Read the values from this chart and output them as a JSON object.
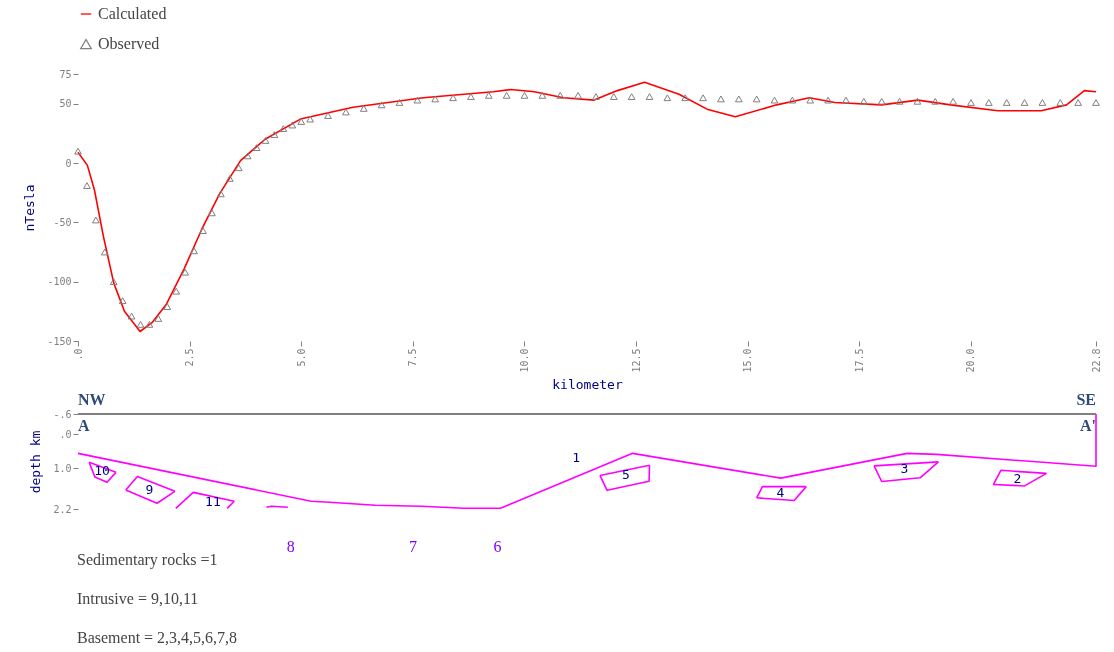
{
  "chart_data": [
    {
      "type": "line",
      "xlabel": "kilometer",
      "ylabel": "nTesla",
      "xlim": [
        0,
        22.8
      ],
      "ylim": [
        -150,
        75
      ],
      "xticks": [
        {
          "value": 0,
          "label": ".0"
        },
        2.5,
        {
          "value": 5,
          "label": "5.0"
        },
        7.5,
        {
          "value": 10,
          "label": "10.0"
        },
        12.5,
        {
          "value": 15,
          "label": "15.0"
        },
        17.5,
        {
          "value": 20,
          "label": "20.0"
        },
        22.8
      ],
      "yticks": [
        -150,
        -100,
        -50,
        0,
        50,
        75
      ],
      "legend": "top left",
      "series": [
        {
          "name": "Calculated",
          "color": "#ff0000",
          "x": [
            0,
            0.21,
            0.37,
            0.57,
            0.8,
            1.04,
            1.39,
            1.67,
            1.98,
            2.38,
            2.77,
            3.17,
            3.64,
            4.19,
            4.98,
            6.16,
            7.73,
            9.3,
            9.7,
            10.22,
            10.87,
            11.56,
            12.08,
            12.69,
            13.46,
            14.11,
            14.72,
            15.65,
            16.38,
            16.95,
            18.0,
            18.81,
            19.54,
            20.6,
            21.57,
            22.14,
            22.54,
            22.8
          ],
          "values": [
            9,
            -2,
            -23,
            -62,
            -101,
            -125,
            -142,
            -134,
            -119,
            -89,
            -56,
            -26,
            2,
            20,
            37,
            47,
            55,
            60,
            62,
            60,
            55,
            53,
            61,
            68,
            58,
            45,
            39,
            49,
            55,
            51,
            49,
            53,
            49,
            44,
            44,
            49,
            61,
            60
          ]
        },
        {
          "name": "Observed",
          "type": "scatter",
          "color": "#808080",
          "marker": "triangle",
          "x": [
            0,
            0.2,
            0.4,
            0.6,
            0.8,
            1.0,
            1.2,
            1.4,
            1.6,
            1.8,
            2.0,
            2.2,
            2.4,
            2.6,
            2.8,
            3.0,
            3.2,
            3.4,
            3.6,
            3.8,
            4.0,
            4.2,
            4.4,
            4.6,
            4.8,
            5.0,
            5.2,
            5.6,
            6.0,
            6.4,
            6.8,
            7.2,
            7.6,
            8.0,
            8.4,
            8.8,
            9.2,
            9.6,
            10.0,
            10.4,
            10.8,
            11.2,
            11.6,
            12.0,
            12.4,
            12.8,
            13.2,
            13.6,
            14.0,
            14.4,
            14.8,
            15.2,
            15.6,
            16.0,
            16.4,
            16.8,
            17.2,
            17.6,
            18.0,
            18.4,
            18.8,
            19.2,
            19.6,
            20.0,
            20.4,
            20.8,
            21.2,
            21.6,
            22.0,
            22.4,
            22.8
          ],
          "values": [
            10,
            -19,
            -48,
            -75,
            -100,
            -116,
            -129,
            -136,
            -136,
            -131,
            -121,
            -108,
            -92,
            -74,
            -57,
            -42,
            -26,
            -13,
            -4,
            6,
            13,
            19,
            24,
            29,
            32,
            35,
            37,
            40,
            43,
            46,
            49,
            51,
            53,
            54,
            55,
            56,
            57,
            57,
            57,
            57,
            57,
            57,
            56,
            56,
            56,
            56,
            55,
            55,
            55,
            54,
            54,
            54,
            53,
            53,
            53,
            53,
            53,
            52,
            52,
            52,
            52,
            52,
            52,
            51,
            51,
            51,
            51,
            51,
            51,
            51,
            51
          ]
        }
      ]
    },
    {
      "type": "line",
      "ylabel": "depth km",
      "xlim": [
        0,
        22.8
      ],
      "ylim": [
        2.2,
        -0.6
      ],
      "tick_labels": "y",
      "yticks": [
        {
          "value": -0.6,
          "label": "-.6"
        },
        {
          "value": 0,
          "label": ".0"
        },
        {
          "value": 1,
          "label": "1.0"
        },
        {
          "value": 2.2,
          "label": "2.2"
        }
      ],
      "ref_lines": [
        {
          "axis": "y",
          "value": -0.6,
          "color": "#808080"
        }
      ],
      "series": [
        {
          "color": "#ff00ff",
          "x": [
            0,
            5.22,
            5.63,
            6.66,
            7.69,
            8.65,
            9.46,
            12.42,
            15.74,
            18.57,
            19.23,
            22.8,
            22.8
          ],
          "values": [
            0.56,
            1.97,
            2.0,
            2.09,
            2.12,
            2.18,
            2.18,
            0.56,
            1.29,
            0.56,
            0.59,
            0.94,
            -0.6
          ]
        },
        {
          "name": "10",
          "color": "#ff00ff",
          "x": [
            0.25,
            0.85
          ],
          "values": [
            0.82,
            1.12
          ]
        },
        {
          "color": "#ff00ff",
          "x": [
            0.25,
            0.38,
            0.65,
            0.85
          ],
          "values": [
            0.82,
            1.26,
            1.41,
            1.12
          ]
        },
        {
          "name": "9",
          "color": "#ff00ff",
          "x": [
            1.07,
            1.33,
            2.17
          ],
          "values": [
            1.64,
            1.24,
            1.68
          ]
        },
        {
          "color": "#ff00ff",
          "x": [
            1.07,
            1.77,
            2.17
          ],
          "values": [
            1.64,
            2.03,
            1.68
          ]
        },
        {
          "name": "11",
          "color": "#ff00ff",
          "x": [
            2.19,
            2.58,
            3.5
          ],
          "values": [
            2.18,
            1.71,
            1.97
          ]
        },
        {
          "color": "#ff00ff",
          "x": [
            3.34,
            3.5
          ],
          "values": [
            2.18,
            1.97
          ]
        },
        {
          "color": "#ff00ff",
          "x": [
            4.22,
            4.33,
            4.7
          ],
          "values": [
            2.15,
            2.12,
            2.15
          ]
        },
        {
          "name": "5",
          "color": "#ff00ff",
          "x": [
            11.69,
            12.8
          ],
          "values": [
            1.21,
            0.91
          ]
        },
        {
          "color": "#ff00ff",
          "x": [
            11.69,
            11.85,
            12.79,
            12.8
          ],
          "values": [
            1.21,
            1.65,
            1.38,
            0.91
          ]
        },
        {
          "name": "4",
          "color": "#ff00ff",
          "x": [
            15.2,
            15.33,
            16.31
          ],
          "values": [
            1.87,
            1.54,
            1.54
          ]
        },
        {
          "color": "#ff00ff",
          "x": [
            15.2,
            16.04,
            16.31
          ],
          "values": [
            1.87,
            1.95,
            1.54
          ]
        },
        {
          "name": "3",
          "color": "#ff00ff",
          "x": [
            17.83,
            19.27
          ],
          "values": [
            0.93,
            0.81
          ]
        },
        {
          "color": "#ff00ff",
          "x": [
            17.83,
            18.0,
            18.86,
            19.27
          ],
          "values": [
            0.93,
            1.39,
            1.28,
            0.81
          ]
        },
        {
          "name": "2",
          "color": "#ff00ff",
          "x": [
            20.5,
            20.67,
            21.69
          ],
          "values": [
            1.48,
            1.06,
            1.15
          ]
        },
        {
          "color": "#ff00ff",
          "x": [
            20.5,
            21.2,
            21.69
          ],
          "values": [
            1.48,
            1.52,
            1.15
          ]
        }
      ],
      "annotations": [
        "NW",
        "SE",
        "A",
        "A'",
        {
          "text": "1",
          "x": 11.47,
          "y": 1.08
        },
        "8",
        "7",
        "6",
        "Sedimentary rocks =1",
        "Intrusive = 9,10,11",
        "Basement = 2,3,4,5,6,7,8"
      ]
    }
  ]
}
